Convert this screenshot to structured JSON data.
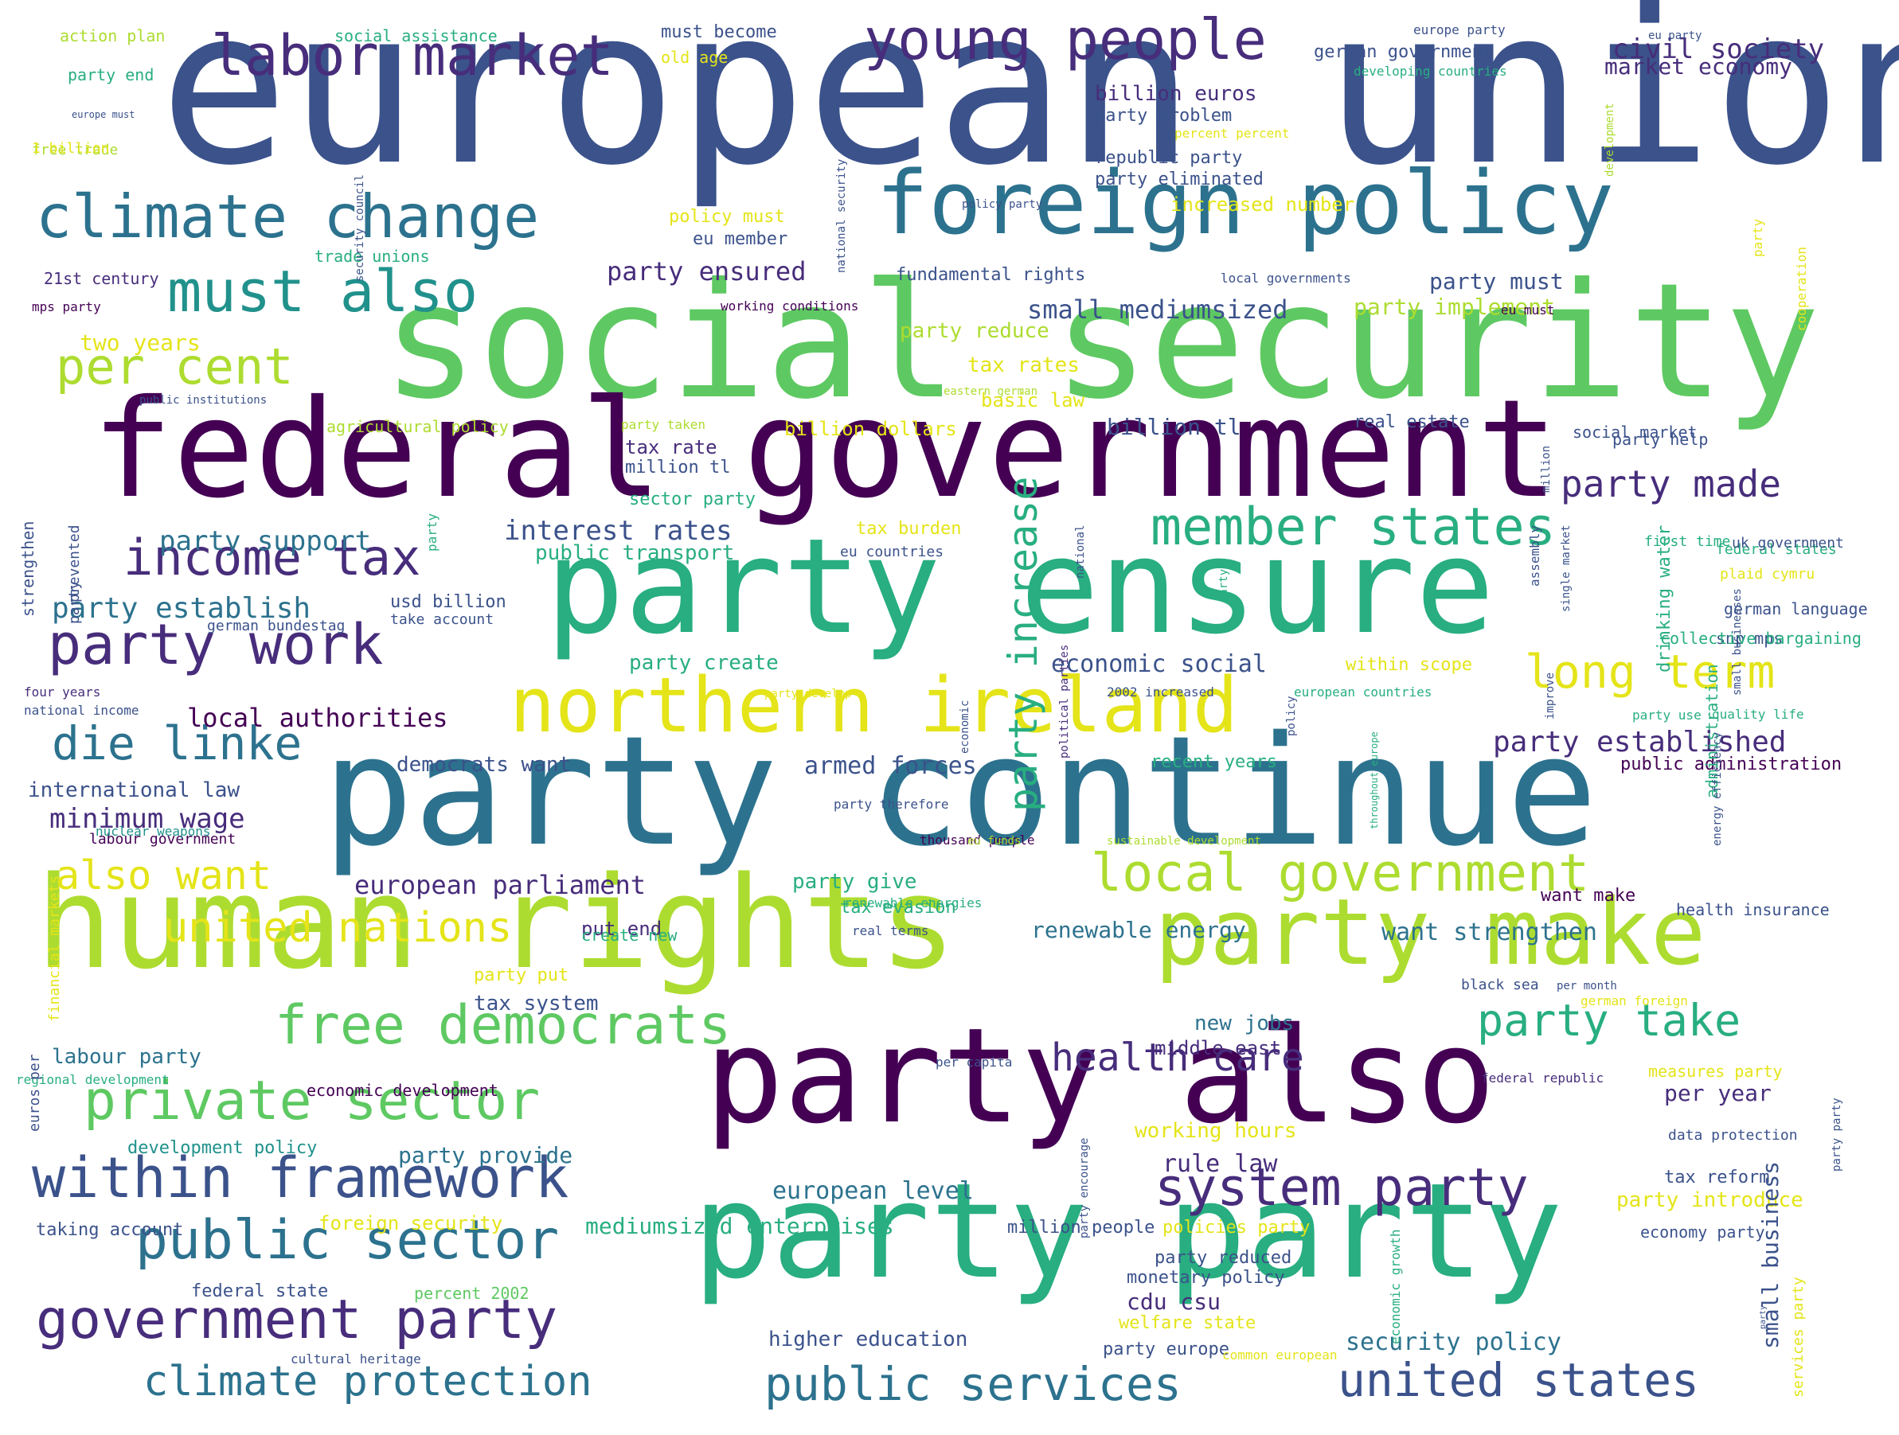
{
  "palette": {
    "d1": "#440154",
    "d2": "#472d7b",
    "d3": "#3b528b",
    "d4": "#2c728e",
    "d5": "#21918c",
    "d6": "#28ae80",
    "d7": "#5ec962",
    "d8": "#addc30",
    "d9": "#e4e419"
  },
  "words": [
    {
      "text": "european union",
      "c": "d3"
    },
    {
      "text": "social security",
      "c": "d7"
    },
    {
      "text": "federal government",
      "c": "d1"
    },
    {
      "text": "party ensure",
      "c": "d6"
    },
    {
      "text": "party continue",
      "c": "d4"
    },
    {
      "text": "human rights",
      "c": "d8"
    },
    {
      "text": "party also",
      "c": "d1"
    },
    {
      "text": "party party",
      "c": "d6"
    },
    {
      "text": "party make",
      "c": "d8"
    },
    {
      "text": "foreign policy",
      "c": "d4"
    },
    {
      "text": "northern ireland",
      "c": "d9"
    },
    {
      "text": "climate change",
      "c": "d4"
    },
    {
      "text": "labor market",
      "c": "d2"
    },
    {
      "text": "young people",
      "c": "d2"
    },
    {
      "text": "must also",
      "c": "d5"
    },
    {
      "text": "per cent",
      "c": "d8"
    },
    {
      "text": "income tax",
      "c": "d2"
    },
    {
      "text": "party work",
      "c": "d2"
    },
    {
      "text": "die linke",
      "c": "d4"
    },
    {
      "text": "member states",
      "c": "d6"
    },
    {
      "text": "local government",
      "c": "d8"
    },
    {
      "text": "long term",
      "c": "d9"
    },
    {
      "text": "free democrats",
      "c": "d7"
    },
    {
      "text": "private sector",
      "c": "d7"
    },
    {
      "text": "within framework",
      "c": "d3"
    },
    {
      "text": "public sector",
      "c": "d4"
    },
    {
      "text": "government party",
      "c": "d2"
    },
    {
      "text": "system party",
      "c": "d2"
    },
    {
      "text": "climate protection",
      "c": "d4"
    },
    {
      "text": "public services",
      "c": "d4"
    },
    {
      "text": "united states",
      "c": "d3"
    },
    {
      "text": "party take",
      "c": "d6"
    },
    {
      "text": "health care",
      "c": "d2"
    },
    {
      "text": "united nations",
      "c": "d9"
    },
    {
      "text": "also want",
      "c": "d9"
    },
    {
      "text": "party made",
      "c": "d2"
    },
    {
      "text": "party increase",
      "c": "d6"
    },
    {
      "text": "civil society",
      "c": "d2"
    },
    {
      "text": "market economy",
      "c": "d2"
    },
    {
      "text": "german government",
      "c": "d3"
    },
    {
      "text": "billion euros",
      "c": "d2"
    },
    {
      "text": "party problem",
      "c": "d3"
    },
    {
      "text": "republic party",
      "c": "d3"
    },
    {
      "text": "party eliminated",
      "c": "d3"
    },
    {
      "text": "increased number",
      "c": "d9"
    },
    {
      "text": "fundamental rights",
      "c": "d3"
    },
    {
      "text": "party must",
      "c": "d3"
    },
    {
      "text": "party ensured",
      "c": "d2"
    },
    {
      "text": "eu member",
      "c": "d3"
    },
    {
      "text": "policy must",
      "c": "d9"
    },
    {
      "text": "small mediumsized",
      "c": "d3"
    },
    {
      "text": "party implement",
      "c": "d8"
    },
    {
      "text": "party reduce",
      "c": "d8"
    },
    {
      "text": "tax rates",
      "c": "d9"
    },
    {
      "text": "basic law",
      "c": "d9"
    },
    {
      "text": "billion dollars",
      "c": "d9"
    },
    {
      "text": "billion tl",
      "c": "d3"
    },
    {
      "text": "real estate",
      "c": "d3"
    },
    {
      "text": "tax rate",
      "c": "d2"
    },
    {
      "text": "million tl",
      "c": "d3"
    },
    {
      "text": "sector party",
      "c": "d6"
    },
    {
      "text": "interest rates",
      "c": "d3"
    },
    {
      "text": "public transport",
      "c": "d6"
    },
    {
      "text": "tax burden",
      "c": "d9"
    },
    {
      "text": "eu countries",
      "c": "d3"
    },
    {
      "text": "party support",
      "c": "d4"
    },
    {
      "text": "party establish",
      "c": "d4"
    },
    {
      "text": "usd billion",
      "c": "d3"
    },
    {
      "text": "take account",
      "c": "d3"
    },
    {
      "text": "german bundestag",
      "c": "d3"
    },
    {
      "text": "party create",
      "c": "d6"
    },
    {
      "text": "economic social",
      "c": "d3"
    },
    {
      "text": "within scope",
      "c": "d9"
    },
    {
      "text": "local authorities",
      "c": "d1"
    },
    {
      "text": "party established",
      "c": "d2"
    },
    {
      "text": "public administration",
      "c": "d1"
    },
    {
      "text": "democrats want",
      "c": "d3"
    },
    {
      "text": "armed forces",
      "c": "d3"
    },
    {
      "text": "recent years",
      "c": "d6"
    },
    {
      "text": "international law",
      "c": "d3"
    },
    {
      "text": "minimum wage",
      "c": "d2"
    },
    {
      "text": "labour government",
      "c": "d1"
    },
    {
      "text": "european parliament",
      "c": "d2"
    },
    {
      "text": "party give",
      "c": "d6"
    },
    {
      "text": "tax evasion",
      "c": "d6"
    },
    {
      "text": "renewable energies",
      "c": "d6"
    },
    {
      "text": "put end",
      "c": "d2"
    },
    {
      "text": "create new",
      "c": "d6"
    },
    {
      "text": "renewable energy",
      "c": "d4"
    },
    {
      "text": "want strengthen",
      "c": "d4"
    },
    {
      "text": "want make",
      "c": "d1"
    },
    {
      "text": "health insurance",
      "c": "d3"
    },
    {
      "text": "party put",
      "c": "d9"
    },
    {
      "text": "tax system",
      "c": "d3"
    },
    {
      "text": "new jobs",
      "c": "d4"
    },
    {
      "text": "labour party",
      "c": "d4"
    },
    {
      "text": "economic development",
      "c": "d1"
    },
    {
      "text": "middle east",
      "c": "d2"
    },
    {
      "text": "working hours",
      "c": "d9"
    },
    {
      "text": "per year",
      "c": "d2"
    },
    {
      "text": "measures party",
      "c": "d9"
    },
    {
      "text": "development policy",
      "c": "d5"
    },
    {
      "text": "party provide",
      "c": "d4"
    },
    {
      "text": "rule law",
      "c": "d2"
    },
    {
      "text": "european level",
      "c": "d4"
    },
    {
      "text": "data protection",
      "c": "d3"
    },
    {
      "text": "tax reform",
      "c": "d3"
    },
    {
      "text": "party introduce",
      "c": "d9"
    },
    {
      "text": "foreign security",
      "c": "d9"
    },
    {
      "text": "mediumsized enterprises",
      "c": "d6"
    },
    {
      "text": "million people",
      "c": "d3"
    },
    {
      "text": "policies party",
      "c": "d9"
    },
    {
      "text": "economy party",
      "c": "d3"
    },
    {
      "text": "taking account",
      "c": "d3"
    },
    {
      "text": "federal state",
      "c": "d3"
    },
    {
      "text": "percent 2002",
      "c": "d7"
    },
    {
      "text": "party reduced",
      "c": "d3"
    },
    {
      "text": "monetary policy",
      "c": "d3"
    },
    {
      "text": "cdu csu",
      "c": "d2"
    },
    {
      "text": "welfare state",
      "c": "d9"
    },
    {
      "text": "higher education",
      "c": "d3"
    },
    {
      "text": "party europe",
      "c": "d3"
    },
    {
      "text": "security policy",
      "c": "d4"
    },
    {
      "text": "cultural heritage",
      "c": "d3"
    },
    {
      "text": "common european",
      "c": "d9"
    },
    {
      "text": "action plan",
      "c": "d8"
    },
    {
      "text": "social assistance",
      "c": "d6"
    },
    {
      "text": "must become",
      "c": "d3"
    },
    {
      "text": "old age",
      "c": "d9"
    },
    {
      "text": "party end",
      "c": "d6"
    },
    {
      "text": "europe party",
      "c": "d3"
    },
    {
      "text": "developing countries",
      "c": "d6"
    },
    {
      "text": "percent percent",
      "c": "d9"
    },
    {
      "text": "free trade",
      "c": "d8"
    },
    {
      "text": "1 billion",
      "c": "d9"
    },
    {
      "text": "trade unions",
      "c": "d6"
    },
    {
      "text": "21st century",
      "c": "d2"
    },
    {
      "text": "mps party",
      "c": "d1"
    },
    {
      "text": "two years",
      "c": "d9"
    },
    {
      "text": "policy party",
      "c": "d3"
    },
    {
      "text": "local governments",
      "c": "d3"
    },
    {
      "text": "working conditions",
      "c": "d1"
    },
    {
      "text": "eastern german",
      "c": "d8"
    },
    {
      "text": "eu must",
      "c": "d1"
    },
    {
      "text": "public institutions",
      "c": "d3"
    },
    {
      "text": "agricultural policy",
      "c": "d8"
    },
    {
      "text": "party taken",
      "c": "d8"
    },
    {
      "text": "social market",
      "c": "d3"
    },
    {
      "text": "party help",
      "c": "d3"
    },
    {
      "text": "first time",
      "c": "d6"
    },
    {
      "text": "federal states",
      "c": "d6"
    },
    {
      "text": "uk government",
      "c": "d3"
    },
    {
      "text": "plaid cymru",
      "c": "d9"
    },
    {
      "text": "german language",
      "c": "d3"
    },
    {
      "text": "snp mps",
      "c": "d3"
    },
    {
      "text": "collective bargaining",
      "c": "d6"
    },
    {
      "text": "four years",
      "c": "d2"
    },
    {
      "text": "national income",
      "c": "d3"
    },
    {
      "text": "party develop",
      "c": "d9"
    },
    {
      "text": "2002 increased",
      "c": "d3"
    },
    {
      "text": "european countries",
      "c": "d6"
    },
    {
      "text": "party use",
      "c": "d6"
    },
    {
      "text": "quality life",
      "c": "d6"
    },
    {
      "text": "party therefore",
      "c": "d3"
    },
    {
      "text": "thousand people",
      "c": "d1"
    },
    {
      "text": "eu funds",
      "c": "d8"
    },
    {
      "text": "sustainable development",
      "c": "d8"
    },
    {
      "text": "nuclear weapons",
      "c": "d5"
    },
    {
      "text": "real terms",
      "c": "d3"
    },
    {
      "text": "black sea",
      "c": "d3"
    },
    {
      "text": "per month",
      "c": "d3"
    },
    {
      "text": "german foreign",
      "c": "d9"
    },
    {
      "text": "per capita",
      "c": "d3"
    },
    {
      "text": "federal republic",
      "c": "d2"
    },
    {
      "text": "regional development",
      "c": "d6"
    },
    {
      "text": "eu party",
      "c": "d3"
    },
    {
      "text": "europe must",
      "c": "d3"
    },
    {
      "text": "security council",
      "c": "d3"
    },
    {
      "text": "national security",
      "c": "d3"
    },
    {
      "text": "strengthen",
      "c": "d3"
    },
    {
      "text": "prevented",
      "c": "d3"
    },
    {
      "text": "party",
      "c": "d3"
    },
    {
      "text": "party",
      "c": "d6"
    },
    {
      "text": "million",
      "c": "d3"
    },
    {
      "text": "national",
      "c": "d3"
    },
    {
      "text": "assembly",
      "c": "d3"
    },
    {
      "text": "single market",
      "c": "d3"
    },
    {
      "text": "improve",
      "c": "d3"
    },
    {
      "text": "party",
      "c": "d6"
    },
    {
      "text": "political parties",
      "c": "d2"
    },
    {
      "text": "throughout europe",
      "c": "d6"
    },
    {
      "text": "policy",
      "c": "d3"
    },
    {
      "text": "economic",
      "c": "d3"
    },
    {
      "text": "drinking water",
      "c": "d6"
    },
    {
      "text": "administration",
      "c": "d6"
    },
    {
      "text": "energy efficiency",
      "c": "d3"
    },
    {
      "text": "small businesses",
      "c": "d3"
    },
    {
      "text": "party",
      "c": "d9"
    },
    {
      "text": "cooperation",
      "c": "d9"
    },
    {
      "text": "development",
      "c": "d8"
    },
    {
      "text": "financial markets",
      "c": "d9"
    },
    {
      "text": "euros per",
      "c": "d3"
    },
    {
      "text": "economic growth",
      "c": "d6"
    },
    {
      "text": "party encourage",
      "c": "d3"
    },
    {
      "text": "small business",
      "c": "d3"
    },
    {
      "text": "services party",
      "c": "d9"
    },
    {
      "text": "party party",
      "c": "d3"
    },
    {
      "text": "party",
      "c": "d3"
    }
  ]
}
